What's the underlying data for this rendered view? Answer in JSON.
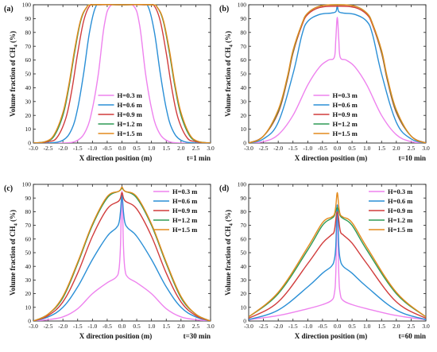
{
  "colors": {
    "H=0.3 m": "#ee82ee",
    "H=0.6 m": "#2a8fd6",
    "H=0.9 m": "#d13c3c",
    "H=1.2 m": "#2e9a55",
    "H=1.5 m": "#e38a1d"
  },
  "chart_data": [
    {
      "type": "line",
      "panel_label": "(a)",
      "time_label": "t=1 min",
      "xlabel": "X direction position (m)",
      "ylabel": "Volume fraction of CH4 (%)",
      "xlim": [
        -3.0,
        3.0
      ],
      "ylim": [
        0,
        100
      ],
      "xticks": [
        "-3.0",
        "-2.5",
        "-2.0",
        "-1.5",
        "-1.0",
        "-0.5",
        "0.0",
        "0.5",
        "1.0",
        "1.5",
        "2.0",
        "2.5",
        "3.0"
      ],
      "yticks": [
        "0",
        "10",
        "20",
        "30",
        "40",
        "50",
        "60",
        "70",
        "80",
        "90",
        "100"
      ],
      "legend_position": "bottom-center",
      "series": [
        {
          "name": "H=0.3 m",
          "x": [
            -3.0,
            -2.0,
            -1.5,
            -1.2,
            -1.0,
            -0.8,
            -0.6,
            -0.4,
            0.0,
            0.4,
            0.6,
            0.8,
            1.0,
            1.2,
            1.5,
            2.0,
            3.0
          ],
          "y": [
            0,
            0,
            2,
            10,
            25,
            50,
            85,
            99,
            100,
            99,
            85,
            50,
            25,
            10,
            2,
            0,
            0
          ]
        },
        {
          "name": "H=0.6 m",
          "x": [
            -3.0,
            -2.5,
            -2.0,
            -1.7,
            -1.5,
            -1.3,
            -1.1,
            -0.9,
            -0.7,
            0.0,
            0.7,
            0.9,
            1.1,
            1.3,
            1.5,
            1.7,
            2.0,
            2.5,
            3.0
          ],
          "y": [
            0,
            0,
            2,
            10,
            25,
            50,
            80,
            98,
            100,
            100,
            100,
            98,
            80,
            50,
            25,
            10,
            2,
            0,
            0
          ]
        },
        {
          "name": "H=0.9 m",
          "x": [
            -3.0,
            -2.5,
            -2.2,
            -1.9,
            -1.7,
            -1.5,
            -1.3,
            -1.1,
            -0.9,
            0.0,
            0.9,
            1.1,
            1.3,
            1.5,
            1.7,
            1.9,
            2.2,
            2.5,
            3.0
          ],
          "y": [
            0,
            1,
            4,
            18,
            38,
            65,
            88,
            99,
            100,
            100,
            100,
            99,
            88,
            65,
            38,
            18,
            4,
            1,
            0
          ]
        },
        {
          "name": "H=1.2 m",
          "x": [
            -3.0,
            -2.6,
            -2.3,
            -2.0,
            -1.8,
            -1.6,
            -1.4,
            -1.2,
            -1.0,
            0.0,
            1.0,
            1.2,
            1.4,
            1.6,
            1.8,
            2.0,
            2.3,
            2.6,
            3.0
          ],
          "y": [
            0,
            1,
            5,
            20,
            40,
            66,
            88,
            98,
            100,
            100,
            100,
            98,
            88,
            66,
            40,
            20,
            5,
            1,
            0
          ]
        },
        {
          "name": "H=1.5 m",
          "x": [
            -3.0,
            -2.6,
            -2.3,
            -2.0,
            -1.8,
            -1.6,
            -1.4,
            -1.2,
            -1.0,
            0.0,
            1.0,
            1.2,
            1.4,
            1.6,
            1.8,
            2.0,
            2.3,
            2.6,
            3.0
          ],
          "y": [
            0,
            1,
            6,
            22,
            42,
            68,
            89,
            98,
            100,
            100,
            100,
            98,
            89,
            68,
            42,
            22,
            6,
            1,
            0
          ]
        }
      ]
    },
    {
      "type": "line",
      "panel_label": "(b)",
      "time_label": "t=10 min",
      "xlabel": "X direction position (m)",
      "ylabel": "Volume fraction of CH4 (%)",
      "xlim": [
        -3.0,
        3.0
      ],
      "ylim": [
        0,
        100
      ],
      "xticks": [
        "-3.0",
        "-2.5",
        "-2.0",
        "-1.5",
        "-1.0",
        "-0.5",
        "0.0",
        "0.5",
        "1.0",
        "1.5",
        "2.0",
        "2.5",
        "3.0"
      ],
      "yticks": [
        "0",
        "10",
        "20",
        "30",
        "40",
        "50",
        "60",
        "70",
        "80",
        "90",
        "100"
      ],
      "legend_position": "bottom-center",
      "series": [
        {
          "name": "H=0.3 m",
          "x": [
            -3.0,
            -2.5,
            -2.0,
            -1.5,
            -1.0,
            -0.6,
            -0.3,
            -0.1,
            -0.05,
            0.0,
            0.05,
            0.1,
            0.3,
            0.6,
            1.0,
            1.5,
            2.0,
            2.5,
            3.0
          ],
          "y": [
            0,
            1,
            6,
            20,
            42,
            55,
            60,
            62,
            75,
            91,
            75,
            62,
            60,
            55,
            42,
            20,
            6,
            1,
            0
          ]
        },
        {
          "name": "H=0.6 m",
          "x": [
            -3.0,
            -2.5,
            -2.0,
            -1.5,
            -1.2,
            -1.0,
            -0.6,
            -0.2,
            -0.05,
            0.0,
            0.05,
            0.2,
            0.6,
            1.0,
            1.2,
            1.5,
            2.0,
            2.5,
            3.0
          ],
          "y": [
            0,
            3,
            15,
            50,
            78,
            88,
            93,
            94,
            95,
            99,
            95,
            94,
            93,
            88,
            78,
            50,
            15,
            3,
            0
          ]
        },
        {
          "name": "H=0.9 m",
          "x": [
            -3.0,
            -2.5,
            -2.0,
            -1.7,
            -1.5,
            -1.2,
            -1.0,
            -0.6,
            0.0,
            0.6,
            1.0,
            1.2,
            1.5,
            1.7,
            2.0,
            2.5,
            3.0
          ],
          "y": [
            0,
            5,
            22,
            45,
            65,
            85,
            93,
            98,
            99,
            98,
            93,
            85,
            65,
            45,
            22,
            5,
            0
          ]
        },
        {
          "name": "H=1.2 m",
          "x": [
            -3.0,
            -2.5,
            -2.0,
            -1.7,
            -1.5,
            -1.2,
            -1.0,
            -0.6,
            0.0,
            0.6,
            1.0,
            1.2,
            1.5,
            1.7,
            2.0,
            2.5,
            3.0
          ],
          "y": [
            0,
            5,
            23,
            46,
            66,
            86,
            94,
            99,
            100,
            99,
            94,
            86,
            66,
            46,
            23,
            5,
            0
          ]
        },
        {
          "name": "H=1.5 m",
          "x": [
            -3.0,
            -2.5,
            -2.0,
            -1.7,
            -1.5,
            -1.2,
            -1.0,
            -0.6,
            0.0,
            0.6,
            1.0,
            1.2,
            1.5,
            1.7,
            2.0,
            2.5,
            3.0
          ],
          "y": [
            0,
            5,
            24,
            47,
            67,
            86,
            94,
            99,
            100,
            99,
            94,
            86,
            67,
            47,
            24,
            5,
            0
          ]
        }
      ]
    },
    {
      "type": "line",
      "panel_label": "(c)",
      "time_label": "t=30 min",
      "xlabel": "X direction position (m)",
      "ylabel": "Volume fraction of CH4 (%)",
      "xlim": [
        -3.0,
        3.0
      ],
      "ylim": [
        0,
        100
      ],
      "xticks": [
        "-3.0",
        "-2.5",
        "-2.0",
        "-1.5",
        "-1.0",
        "-0.5",
        "0.0",
        "0.5",
        "1.0",
        "1.5",
        "2.0",
        "2.5",
        "3.0"
      ],
      "yticks": [
        "0",
        "10",
        "20",
        "30",
        "40",
        "50",
        "60",
        "70",
        "80",
        "90",
        "100"
      ],
      "legend_position": "top-right",
      "series": [
        {
          "name": "H=0.3 m",
          "x": [
            -3.0,
            -2.5,
            -2.0,
            -1.5,
            -1.0,
            -0.5,
            -0.2,
            -0.1,
            -0.05,
            0.0,
            0.05,
            0.1,
            0.2,
            0.5,
            1.0,
            1.5,
            2.0,
            2.5,
            3.0
          ],
          "y": [
            0,
            1,
            3,
            9,
            20,
            28,
            32,
            38,
            55,
            95,
            55,
            38,
            32,
            28,
            20,
            9,
            3,
            1,
            0
          ]
        },
        {
          "name": "H=0.6 m",
          "x": [
            -3.0,
            -2.5,
            -2.0,
            -1.5,
            -1.0,
            -0.5,
            -0.2,
            -0.1,
            -0.05,
            0.0,
            0.05,
            0.1,
            0.2,
            0.5,
            1.0,
            1.5,
            2.0,
            2.5,
            3.0
          ],
          "y": [
            0,
            3,
            10,
            25,
            45,
            62,
            68,
            72,
            80,
            92,
            80,
            72,
            68,
            62,
            45,
            25,
            10,
            3,
            0
          ]
        },
        {
          "name": "H=0.9 m",
          "x": [
            -3.0,
            -2.5,
            -2.0,
            -1.5,
            -1.0,
            -0.5,
            -0.1,
            0.0,
            0.1,
            0.5,
            1.0,
            1.5,
            2.0,
            2.5,
            3.0
          ],
          "y": [
            0,
            4,
            14,
            35,
            62,
            82,
            88,
            94,
            88,
            82,
            62,
            35,
            14,
            4,
            0
          ]
        },
        {
          "name": "H=1.2 m",
          "x": [
            -3.0,
            -2.5,
            -2.0,
            -1.5,
            -1.0,
            -0.5,
            -0.1,
            0.0,
            0.1,
            0.5,
            1.0,
            1.5,
            2.0,
            2.5,
            3.0
          ],
          "y": [
            0,
            5,
            17,
            42,
            70,
            90,
            95,
            97,
            95,
            90,
            70,
            42,
            17,
            5,
            0
          ]
        },
        {
          "name": "H=1.5 m",
          "x": [
            -3.0,
            -2.5,
            -2.0,
            -1.5,
            -1.0,
            -0.5,
            -0.1,
            0.0,
            0.1,
            0.5,
            1.0,
            1.5,
            2.0,
            2.5,
            3.0
          ],
          "y": [
            0,
            5,
            18,
            43,
            71,
            91,
            95,
            98,
            95,
            91,
            71,
            43,
            18,
            5,
            0
          ]
        }
      ]
    },
    {
      "type": "line",
      "panel_label": "(d)",
      "time_label": "t=60 min",
      "xlabel": "X direction position (m)",
      "ylabel": "Volume fraction of CH4 (%)",
      "xlim": [
        -3.0,
        3.0
      ],
      "ylim": [
        0,
        100
      ],
      "xticks": [
        "-3.0",
        "-2.5",
        "-2.0",
        "-1.5",
        "-1.0",
        "-0.5",
        "0.0",
        "0.5",
        "1.0",
        "1.5",
        "2.0",
        "2.5",
        "3.0"
      ],
      "yticks": [
        "0",
        "10",
        "20",
        "30",
        "40",
        "50",
        "60",
        "70",
        "80",
        "90",
        "100"
      ],
      "legend_position": "top-right",
      "series": [
        {
          "name": "H=0.3 m",
          "x": [
            -3.0,
            -2.0,
            -1.0,
            -0.5,
            -0.2,
            -0.1,
            -0.05,
            0.0,
            0.05,
            0.1,
            0.2,
            0.5,
            1.0,
            2.0,
            3.0
          ],
          "y": [
            1,
            4,
            9,
            12,
            15,
            20,
            35,
            82,
            35,
            20,
            15,
            12,
            9,
            4,
            1
          ]
        },
        {
          "name": "H=0.6 m",
          "x": [
            -3.0,
            -2.0,
            -1.0,
            -0.5,
            -0.2,
            -0.1,
            -0.05,
            0.0,
            0.05,
            0.1,
            0.2,
            0.5,
            1.0,
            2.0,
            3.0
          ],
          "y": [
            1,
            8,
            25,
            35,
            40,
            45,
            55,
            85,
            55,
            45,
            40,
            35,
            25,
            8,
            1
          ]
        },
        {
          "name": "H=0.9 m",
          "x": [
            -3.0,
            -2.0,
            -1.0,
            -0.5,
            -0.2,
            -0.1,
            0.0,
            0.1,
            0.2,
            0.5,
            1.0,
            2.0,
            3.0
          ],
          "y": [
            2,
            14,
            42,
            57,
            63,
            66,
            80,
            66,
            63,
            57,
            42,
            14,
            2
          ]
        },
        {
          "name": "H=1.2 m",
          "x": [
            -3.0,
            -2.0,
            -1.0,
            -0.5,
            -0.2,
            -0.1,
            0.0,
            0.1,
            0.2,
            0.5,
            1.0,
            2.0,
            3.0
          ],
          "y": [
            3,
            20,
            52,
            70,
            75,
            77,
            83,
            77,
            75,
            70,
            52,
            20,
            3
          ]
        },
        {
          "name": "H=1.5 m",
          "x": [
            -3.0,
            -2.0,
            -1.0,
            -0.5,
            -0.2,
            -0.1,
            -0.05,
            0.0,
            0.05,
            0.1,
            0.2,
            0.5,
            1.0,
            2.0,
            3.0
          ],
          "y": [
            3,
            21,
            54,
            72,
            76,
            78,
            84,
            94,
            84,
            78,
            76,
            72,
            54,
            21,
            3
          ]
        }
      ]
    }
  ]
}
